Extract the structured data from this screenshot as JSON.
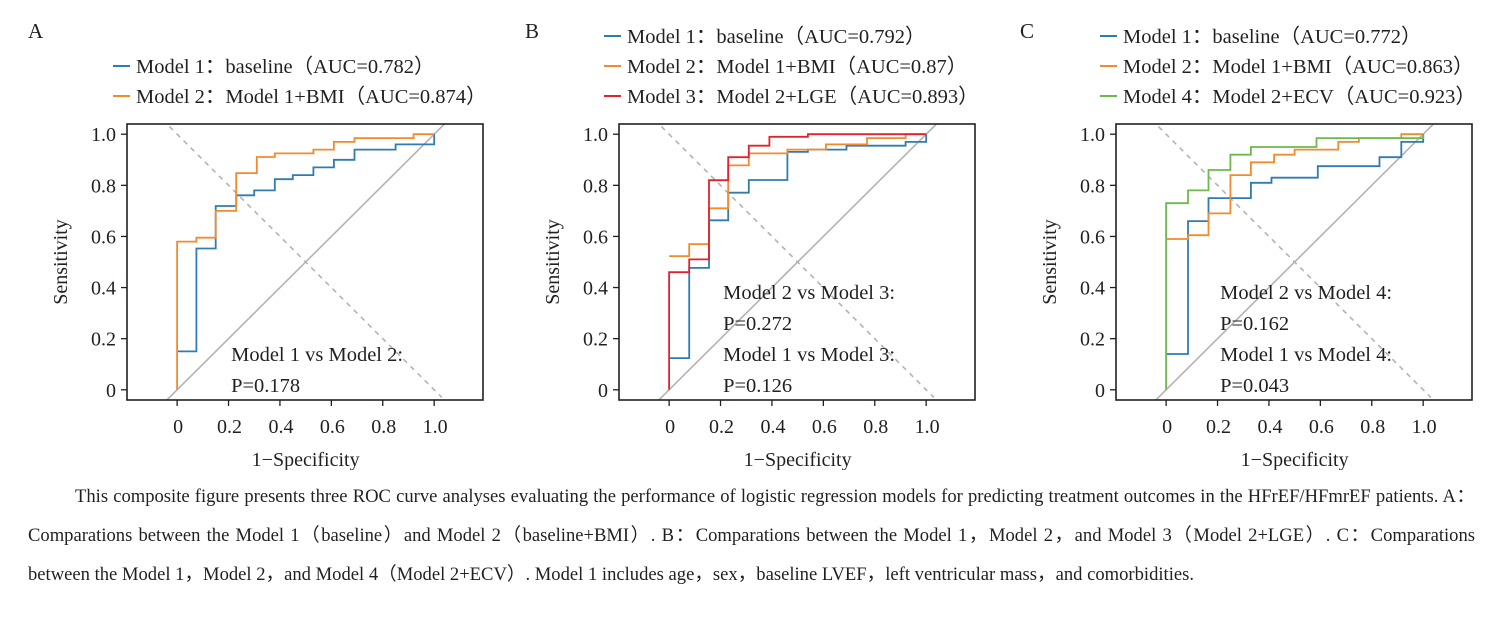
{
  "colors": {
    "model1": "#2f7cb3",
    "model2": "#f28a2e",
    "model3": "#e2232d",
    "model4": "#6dba4c",
    "reference": "#b3b3b3",
    "axis": "#231f20"
  },
  "chart_data": [
    {
      "type": "line",
      "panel_label": "A",
      "xlabel": "1−Specificity",
      "ylabel": "Sensitivity",
      "xlim": [
        -0.195,
        1.19
      ],
      "ylim": [
        -0.04,
        1.04
      ],
      "xticks": [
        0,
        0.2,
        0.4,
        0.6,
        0.8,
        1.0
      ],
      "xtick_labels": [
        "0",
        "0.2",
        "0.4",
        "0.6",
        "0.8",
        "1.0"
      ],
      "yticks": [
        0,
        0.2,
        0.4,
        0.6,
        0.8,
        1.0
      ],
      "ytick_labels": [
        "0",
        "0.2",
        "0.4",
        "0.6",
        "0.8",
        "1.0"
      ],
      "legend_placement": "top",
      "series": [
        {
          "name": "Model 1：baseline（AUC=0.782）",
          "color_key": "model1",
          "points": [
            [
              0,
              0.15
            ],
            [
              0.075,
              0.15
            ],
            [
              0.075,
              0.553
            ],
            [
              0.15,
              0.553
            ],
            [
              0.15,
              0.719
            ],
            [
              0.23,
              0.719
            ],
            [
              0.23,
              0.761
            ],
            [
              0.3,
              0.761
            ],
            [
              0.3,
              0.78
            ],
            [
              0.38,
              0.78
            ],
            [
              0.38,
              0.824
            ],
            [
              0.45,
              0.824
            ],
            [
              0.45,
              0.84
            ],
            [
              0.53,
              0.84
            ],
            [
              0.53,
              0.87
            ],
            [
              0.61,
              0.87
            ],
            [
              0.61,
              0.9
            ],
            [
              0.69,
              0.9
            ],
            [
              0.69,
              0.94
            ],
            [
              0.85,
              0.94
            ],
            [
              0.85,
              0.96
            ],
            [
              1.0,
              0.96
            ],
            [
              1.0,
              1.0
            ]
          ]
        },
        {
          "name": "Model 2：Model 1+BMI（AUC=0.874）",
          "color_key": "model2",
          "points": [
            [
              0,
              0
            ],
            [
              0,
              0.58
            ],
            [
              0.075,
              0.58
            ],
            [
              0.075,
              0.595
            ],
            [
              0.15,
              0.595
            ],
            [
              0.15,
              0.7
            ],
            [
              0.23,
              0.7
            ],
            [
              0.23,
              0.848
            ],
            [
              0.31,
              0.848
            ],
            [
              0.31,
              0.911
            ],
            [
              0.38,
              0.911
            ],
            [
              0.38,
              0.925
            ],
            [
              0.53,
              0.925
            ],
            [
              0.53,
              0.94
            ],
            [
              0.61,
              0.94
            ],
            [
              0.61,
              0.97
            ],
            [
              0.69,
              0.97
            ],
            [
              0.69,
              0.985
            ],
            [
              0.92,
              0.985
            ],
            [
              0.92,
              1.0
            ],
            [
              1.0,
              1.0
            ]
          ]
        }
      ],
      "annotations": [
        "Model 1 vs Model 2:",
        "P=0.178"
      ]
    },
    {
      "type": "line",
      "panel_label": "B",
      "xlabel": "1−Specificity",
      "ylabel": "Sensitivity",
      "xlim": [
        -0.195,
        1.19
      ],
      "ylim": [
        -0.04,
        1.04
      ],
      "xticks": [
        0,
        0.2,
        0.4,
        0.6,
        0.8,
        1.0
      ],
      "xtick_labels": [
        "0",
        "0.2",
        "0.4",
        "0.6",
        "0.8",
        "1.0"
      ],
      "yticks": [
        0,
        0.2,
        0.4,
        0.6,
        0.8,
        1.0
      ],
      "ytick_labels": [
        "0",
        "0.2",
        "0.4",
        "0.6",
        "0.8",
        "1.0"
      ],
      "legend_placement": "top",
      "series": [
        {
          "name": "Model 1：baseline（AUC=0.792）",
          "color_key": "model1",
          "points": [
            [
              0,
              0.124
            ],
            [
              0.078,
              0.124
            ],
            [
              0.078,
              0.477
            ],
            [
              0.155,
              0.477
            ],
            [
              0.155,
              0.663
            ],
            [
              0.23,
              0.663
            ],
            [
              0.23,
              0.771
            ],
            [
              0.31,
              0.771
            ],
            [
              0.31,
              0.821
            ],
            [
              0.46,
              0.821
            ],
            [
              0.46,
              0.931
            ],
            [
              0.54,
              0.931
            ],
            [
              0.54,
              0.94
            ],
            [
              0.69,
              0.94
            ],
            [
              0.69,
              0.955
            ],
            [
              0.92,
              0.955
            ],
            [
              0.92,
              0.97
            ],
            [
              1.0,
              0.97
            ],
            [
              1.0,
              1.0
            ]
          ]
        },
        {
          "name": "Model 2：Model 1+BMI（AUC=0.87）",
          "color_key": "model2",
          "points": [
            [
              0,
              0.523
            ],
            [
              0.078,
              0.523
            ],
            [
              0.078,
              0.57
            ],
            [
              0.155,
              0.57
            ],
            [
              0.155,
              0.71
            ],
            [
              0.23,
              0.71
            ],
            [
              0.23,
              0.878
            ],
            [
              0.31,
              0.878
            ],
            [
              0.31,
              0.925
            ],
            [
              0.46,
              0.925
            ],
            [
              0.46,
              0.94
            ],
            [
              0.61,
              0.94
            ],
            [
              0.61,
              0.96
            ],
            [
              0.77,
              0.96
            ],
            [
              0.77,
              0.985
            ],
            [
              0.92,
              0.985
            ],
            [
              0.92,
              1.0
            ],
            [
              1.0,
              1.0
            ]
          ]
        },
        {
          "name": "Model 3：Model 2+LGE（AUC=0.893）",
          "color_key": "model3",
          "points": [
            [
              0,
              0
            ],
            [
              0,
              0.46
            ],
            [
              0.078,
              0.46
            ],
            [
              0.078,
              0.51
            ],
            [
              0.155,
              0.51
            ],
            [
              0.155,
              0.82
            ],
            [
              0.23,
              0.82
            ],
            [
              0.23,
              0.91
            ],
            [
              0.31,
              0.91
            ],
            [
              0.31,
              0.955
            ],
            [
              0.39,
              0.955
            ],
            [
              0.39,
              0.99
            ],
            [
              0.54,
              0.99
            ],
            [
              0.54,
              1.0
            ],
            [
              1.0,
              1.0
            ]
          ]
        }
      ],
      "annotations": [
        "Model 2 vs Model 3:",
        "P=0.272",
        "Model 1 vs Model 3:",
        "P=0.126"
      ]
    },
    {
      "type": "line",
      "panel_label": "C",
      "xlabel": "1−Specificity",
      "ylabel": "Sensitivity",
      "xlim": [
        -0.195,
        1.19
      ],
      "ylim": [
        -0.04,
        1.04
      ],
      "xticks": [
        0,
        0.2,
        0.4,
        0.6,
        0.8,
        1.0
      ],
      "xtick_labels": [
        "0",
        "0.2",
        "0.4",
        "0.6",
        "0.8",
        "1.0"
      ],
      "yticks": [
        0,
        0.2,
        0.4,
        0.6,
        0.8,
        1.0
      ],
      "ytick_labels": [
        "0",
        "0.2",
        "0.4",
        "0.6",
        "0.8",
        "1.0"
      ],
      "legend_placement": "top",
      "series": [
        {
          "name": "Model 1：baseline（AUC=0.772）",
          "color_key": "model1",
          "points": [
            [
              0,
              0.14
            ],
            [
              0.085,
              0.14
            ],
            [
              0.085,
              0.66
            ],
            [
              0.165,
              0.66
            ],
            [
              0.165,
              0.75
            ],
            [
              0.33,
              0.75
            ],
            [
              0.33,
              0.81
            ],
            [
              0.41,
              0.81
            ],
            [
              0.41,
              0.83
            ],
            [
              0.59,
              0.83
            ],
            [
              0.59,
              0.875
            ],
            [
              0.83,
              0.875
            ],
            [
              0.83,
              0.91
            ],
            [
              0.915,
              0.91
            ],
            [
              0.915,
              0.97
            ],
            [
              1.0,
              0.97
            ],
            [
              1.0,
              1.0
            ]
          ]
        },
        {
          "name": "Model 2：Model 1+BMI（AUC=0.863）",
          "color_key": "model2",
          "points": [
            [
              0,
              0.59
            ],
            [
              0.085,
              0.59
            ],
            [
              0.085,
              0.605
            ],
            [
              0.165,
              0.605
            ],
            [
              0.165,
              0.69
            ],
            [
              0.25,
              0.69
            ],
            [
              0.25,
              0.84
            ],
            [
              0.33,
              0.84
            ],
            [
              0.33,
              0.89
            ],
            [
              0.42,
              0.89
            ],
            [
              0.42,
              0.92
            ],
            [
              0.5,
              0.92
            ],
            [
              0.5,
              0.94
            ],
            [
              0.67,
              0.94
            ],
            [
              0.67,
              0.97
            ],
            [
              0.75,
              0.97
            ],
            [
              0.75,
              0.985
            ],
            [
              0.915,
              0.985
            ],
            [
              0.915,
              1.0
            ],
            [
              1.0,
              1.0
            ]
          ]
        },
        {
          "name": "Model 4：Model 2+ECV（AUC=0.923）",
          "color_key": "model4",
          "points": [
            [
              0,
              0
            ],
            [
              0,
              0.73
            ],
            [
              0.085,
              0.73
            ],
            [
              0.085,
              0.78
            ],
            [
              0.165,
              0.78
            ],
            [
              0.165,
              0.86
            ],
            [
              0.25,
              0.86
            ],
            [
              0.25,
              0.92
            ],
            [
              0.33,
              0.92
            ],
            [
              0.33,
              0.95
            ],
            [
              0.585,
              0.95
            ],
            [
              0.585,
              0.985
            ],
            [
              1.0,
              0.985
            ],
            [
              1.0,
              1.0
            ]
          ]
        }
      ],
      "annotations": [
        "Model 2 vs Model 4:",
        "P=0.162",
        "Model 1 vs Model 4:",
        "P=0.043"
      ]
    }
  ],
  "caption": "This composite figure presents three ROC curve analyses evaluating the performance of logistic regression models for predicting treatment outcomes in the HFrEF/HFmrEF patients. A：Comparations between the Model 1（baseline）and Model 2（baseline+BMI）. B：Comparations between the Model 1，Model 2，and Model 3（Model 2+LGE）. C：Comparations between the Model 1，Model 2，and Model 4（Model 2+ECV）. Model 1 includes age，sex，baseline LVEF，left ventricular mass，and comorbidities."
}
